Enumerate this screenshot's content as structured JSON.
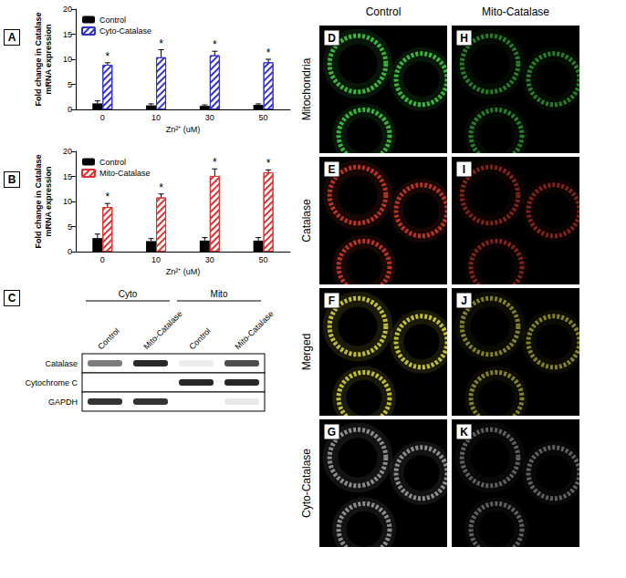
{
  "chart_data": [
    {
      "type": "bar",
      "panel": "A",
      "y_label": "Fold change in Catalase mRNA expression",
      "x_label": "Zn²⁺ (uM)",
      "categories": [
        "0",
        "10",
        "30",
        "50"
      ],
      "series": [
        {
          "name": "Control",
          "color": "#000000",
          "values": [
            1.2,
            0.8,
            0.7,
            0.9
          ],
          "errors": [
            0.5,
            0.3,
            0.2,
            0.2
          ]
        },
        {
          "name": "Cyto-Catalase",
          "color": "#3333cc",
          "values": [
            8.9,
            10.4,
            10.8,
            9.4
          ],
          "errors": [
            0.4,
            1.5,
            0.8,
            0.6
          ],
          "annotations": [
            "*",
            "*",
            "*",
            "*"
          ]
        }
      ],
      "ylim": [
        0,
        20
      ],
      "yticks": [
        0,
        5,
        10,
        15,
        20
      ],
      "legend": "top-left",
      "grid": false
    },
    {
      "type": "bar",
      "panel": "B",
      "y_label": "Fold change in Catalase mRNA expression",
      "x_label": "Zn²⁺ (uM)",
      "categories": [
        "0",
        "10",
        "30",
        "50"
      ],
      "series": [
        {
          "name": "Control",
          "color": "#000000",
          "values": [
            2.7,
            2.1,
            2.2,
            2.2
          ],
          "errors": [
            0.8,
            0.5,
            0.6,
            0.6
          ]
        },
        {
          "name": "Mito-Catalase",
          "color": "#e03030",
          "values": [
            8.9,
            10.8,
            15.1,
            15.8
          ],
          "errors": [
            0.7,
            0.7,
            1.4,
            0.5
          ],
          "annotations": [
            "*",
            "*",
            "*",
            "*"
          ]
        }
      ],
      "ylim": [
        0,
        20
      ],
      "yticks": [
        0,
        5,
        10,
        15,
        20
      ],
      "legend": "top-left",
      "grid": false
    }
  ],
  "blot": {
    "panel": "C",
    "groups": [
      {
        "label": "Cyto",
        "lanes": [
          "Control",
          "Mito-Catalase"
        ]
      },
      {
        "label": "Mito",
        "lanes": [
          "Control",
          "Mito-Catalase"
        ]
      }
    ],
    "rows": [
      {
        "label": "Catalase",
        "intensity": [
          0.55,
          0.9,
          0.08,
          0.75
        ]
      },
      {
        "label": "Cytochrome C",
        "intensity": [
          0,
          0,
          0.9,
          0.9
        ]
      },
      {
        "label": "GAPDH",
        "intensity": [
          0.85,
          0.85,
          0,
          0.1
        ]
      }
    ]
  },
  "microscopy": {
    "columns": [
      "Control",
      "Mito-Catalase"
    ],
    "rows": [
      {
        "label": "Mitochondria",
        "color": "#3fc83f",
        "panels": [
          "D",
          "H"
        ]
      },
      {
        "label": "Catalase",
        "color": "#c83a2a",
        "panels": [
          "E",
          "I"
        ]
      },
      {
        "label": "Merged",
        "color": "#d2d23a",
        "panels": [
          "F",
          "J"
        ]
      },
      {
        "label": "Cyto-Catalase",
        "color": "#9a9a9a",
        "panels": [
          "G",
          "K"
        ]
      }
    ]
  }
}
